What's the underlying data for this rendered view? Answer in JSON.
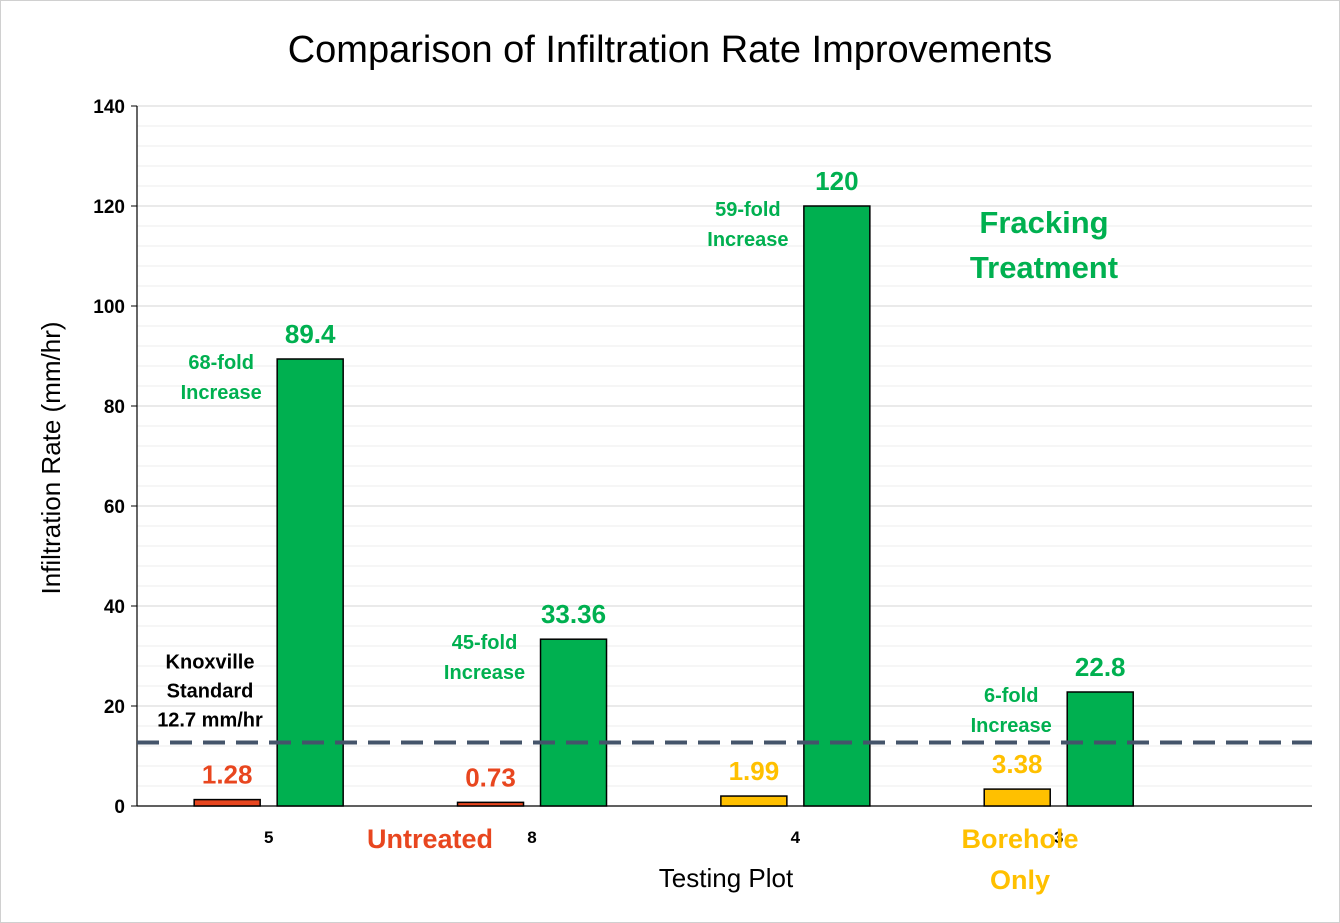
{
  "chart_data": {
    "type": "bar",
    "title": "Comparison of Infiltration Rate Improvements",
    "xlabel": "Testing Plot",
    "ylabel": "Infiltration Rate (mm/hr)",
    "ylim": [
      0,
      140
    ],
    "y_ticks": [
      "0",
      "20",
      "40",
      "60",
      "80",
      "100",
      "120",
      "140"
    ],
    "categories": [
      "5",
      "8",
      "4",
      "3"
    ],
    "series": [
      {
        "values": [
          1.28,
          0.73,
          1.99,
          3.38
        ],
        "colors": [
          "#e8461f",
          "#e8461f",
          "#ffc000",
          "#ffc000"
        ]
      },
      {
        "values": [
          89.4,
          33.36,
          120,
          22.8
        ],
        "colors": [
          "#00b050",
          "#00b050",
          "#00b050",
          "#00b050"
        ]
      }
    ],
    "data_labels_before": [
      "1.28",
      "0.73",
      "1.99",
      "3.38"
    ],
    "data_labels_after": [
      "89.4",
      "33.36",
      "120",
      "22.8"
    ],
    "fold_labels": [
      [
        "68-fold",
        "Increase"
      ],
      [
        "45-fold",
        "Increase"
      ],
      [
        "59-fold",
        "Increase"
      ],
      [
        "6-fold",
        "Increase"
      ]
    ],
    "reference_line": {
      "value": 12.7,
      "label": [
        "Knoxville",
        "Standard",
        "12.7 mm/hr"
      ],
      "color": "#44546a"
    },
    "legend_texts": {
      "untreated": "Untreated",
      "borehole": [
        "Borehole",
        "Only"
      ],
      "fracking": [
        "Fracking",
        "Treatment"
      ]
    },
    "colors": {
      "untreated": "#e8461f",
      "borehole": "#ffc000",
      "fracking": "#00b050"
    },
    "grid": true,
    "legend": "none"
  }
}
